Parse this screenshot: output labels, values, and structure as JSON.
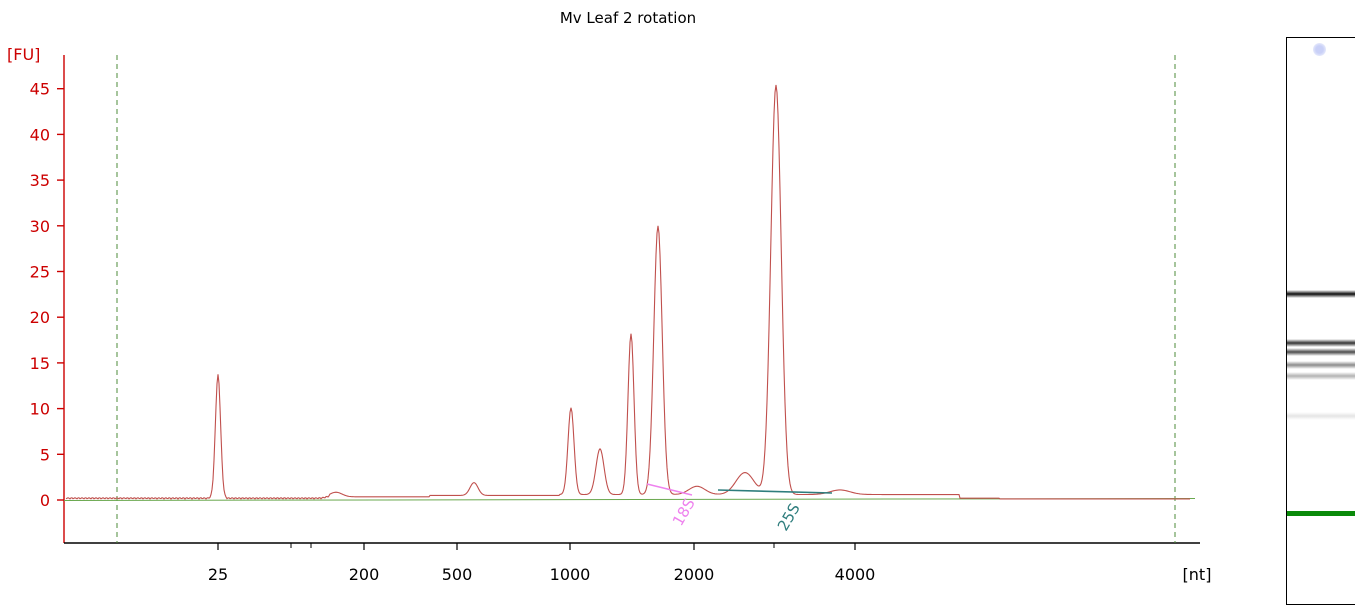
{
  "colors": {
    "trace": "#c0504d",
    "axis": "#cc0000",
    "baseline": "#6aa84f",
    "marker_line": "#4e8b3a",
    "peak_18S": "#ee82ee",
    "peak_25S": "#2e7d7d",
    "gel_marker": "#008000"
  },
  "chart_data": {
    "type": "line",
    "title": "Mv Leaf 2 rotation",
    "ylabel": "[FU]",
    "xlabel": "[nt]",
    "x_scale": "log-like (size standard)",
    "ylim": [
      0,
      45
    ],
    "yticks": [
      0,
      5,
      10,
      15,
      20,
      25,
      30,
      35,
      40,
      45
    ],
    "xtick_labels": [
      "25",
      "200",
      "500",
      "1000",
      "2000",
      "4000"
    ],
    "grid": false,
    "series": [
      {
        "peaks": [
          {
            "x": "25",
            "y": 13.5
          },
          {
            "x": "1000",
            "y": 9.5
          },
          {
            "x": "~1200",
            "y": 5.0
          },
          {
            "x": "~1500",
            "y": 17.6
          },
          {
            "x": "~1800",
            "y": 29.4
          },
          {
            "x": "~3000",
            "y": 44.8
          }
        ]
      }
    ],
    "annotations": [
      {
        "text": "18S"
      },
      {
        "text": "25S"
      }
    ]
  },
  "gel": {
    "bands": [
      {
        "intensity": 0.95
      },
      {
        "intensity": 0.8
      },
      {
        "intensity": 0.7
      },
      {
        "intensity": 0.45
      },
      {
        "intensity": 0.3
      },
      {
        "intensity": 0.1
      }
    ]
  }
}
